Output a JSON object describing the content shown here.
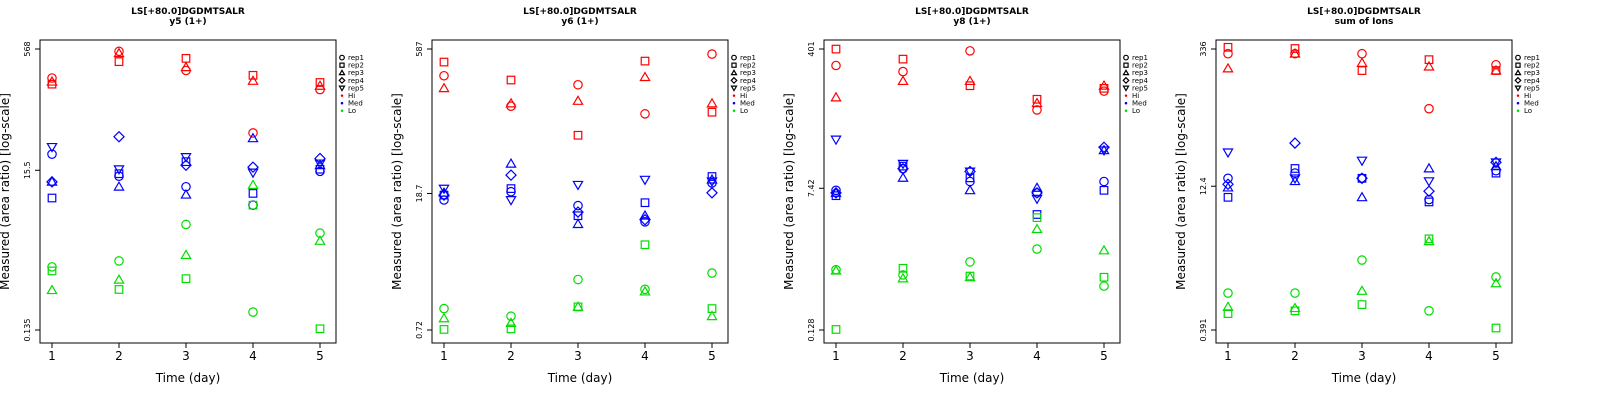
{
  "figure": {
    "colors": {
      "Hi": "#ff0000",
      "Med": "#0000ff",
      "Lo": "#00dd00"
    },
    "legend_entries": [
      {
        "label": "rep1",
        "shape": "circle"
      },
      {
        "label": "rep2",
        "shape": "square"
      },
      {
        "label": "rep3",
        "shape": "triangle-up"
      },
      {
        "label": "rep4",
        "shape": "diamond"
      },
      {
        "label": "rep5",
        "shape": "triangle-down"
      },
      {
        "label": "Hi",
        "shape": "dot",
        "group": "Hi"
      },
      {
        "label": "Med",
        "shape": "dot",
        "group": "Med"
      },
      {
        "label": "Lo",
        "shape": "dot",
        "group": "Lo"
      }
    ]
  },
  "chart_data": [
    {
      "type": "scatter",
      "title": "LS[+80.0]DGDMTSALR",
      "subtitle": "y5 (1+)",
      "xlabel": "Time (day)",
      "ylabel": "Measured (area ratio) [log-scale]",
      "log_y": true,
      "ylim": [
        0.135,
        568
      ],
      "ytick_labels": [
        "0.135",
        "15.5",
        "568"
      ],
      "yticks": [
        0.135,
        15.5,
        568
      ],
      "x_ticks": [
        1,
        2,
        3,
        4,
        5
      ],
      "legend_position": "right",
      "grid": false,
      "series": [
        {
          "group": "Hi",
          "rep": "rep1",
          "x": [
            1,
            2,
            3,
            4,
            5
          ],
          "y": [
            240,
            530,
            300,
            47,
            170
          ]
        },
        {
          "group": "Hi",
          "rep": "rep2",
          "x": [
            1,
            2,
            3,
            4,
            5
          ],
          "y": [
            200,
            390,
            430,
            260,
            210
          ]
        },
        {
          "group": "Hi",
          "rep": "rep3",
          "x": [
            1,
            2,
            3,
            4,
            5
          ],
          "y": [
            215,
            500,
            330,
            220,
            190
          ]
        },
        {
          "group": "Med",
          "rep": "rep1",
          "x": [
            1,
            2,
            3,
            4,
            5
          ],
          "y": [
            25,
            13,
            9.5,
            5.5,
            15
          ]
        },
        {
          "group": "Med",
          "rep": "rep2",
          "x": [
            1,
            2,
            3,
            4,
            5
          ],
          "y": [
            6.8,
            14,
            20,
            7.8,
            16
          ]
        },
        {
          "group": "Med",
          "rep": "rep3",
          "x": [
            1,
            2,
            3,
            4,
            5
          ],
          "y": [
            11,
            9.5,
            7.5,
            40,
            18
          ]
        },
        {
          "group": "Med",
          "rep": "rep4",
          "x": [
            1,
            2,
            3,
            4,
            5
          ],
          "y": [
            11,
            42,
            18,
            17,
            22
          ]
        },
        {
          "group": "Med",
          "rep": "rep5",
          "x": [
            1,
            2,
            3,
            4,
            5
          ],
          "y": [
            31,
            16,
            23,
            14.5,
            19
          ]
        },
        {
          "group": "Lo",
          "rep": "rep1",
          "x": [
            1,
            2,
            3,
            4,
            5
          ],
          "y": [
            0.88,
            1.05,
            3.1,
            0.23,
            2.4
          ]
        },
        {
          "group": "Lo",
          "rep": "rep2",
          "x": [
            1,
            2,
            3,
            4,
            5
          ],
          "y": [
            0.78,
            0.45,
            0.62,
            5.5,
            0.14
          ]
        },
        {
          "group": "Lo",
          "rep": "rep3",
          "x": [
            1,
            2,
            3,
            4,
            5
          ],
          "y": [
            0.44,
            0.6,
            1.25,
            10,
            1.9
          ]
        }
      ]
    },
    {
      "type": "scatter",
      "title": "LS[+80.0]DGDMTSALR",
      "subtitle": "y6 (1+)",
      "xlabel": "Time (day)",
      "ylabel": "Measured (area ratio) [log-scale]",
      "log_y": true,
      "ylim": [
        0.72,
        587
      ],
      "ytick_labels": [
        "0.72",
        "18.7",
        "587"
      ],
      "yticks": [
        0.72,
        18.7,
        587
      ],
      "x_ticks": [
        1,
        2,
        3,
        4,
        5
      ],
      "legend_position": "right",
      "grid": false,
      "series": [
        {
          "group": "Hi",
          "rep": "rep1",
          "x": [
            1,
            2,
            3,
            4,
            5
          ],
          "y": [
            310,
            150,
            250,
            125,
            520
          ]
        },
        {
          "group": "Hi",
          "rep": "rep2",
          "x": [
            1,
            2,
            3,
            4,
            5
          ],
          "y": [
            430,
            280,
            75,
            440,
            130
          ]
        },
        {
          "group": "Hi",
          "rep": "rep3",
          "x": [
            1,
            2,
            3,
            4,
            5
          ],
          "y": [
            230,
            160,
            170,
            300,
            160
          ]
        },
        {
          "group": "Med",
          "rep": "rep1",
          "x": [
            1,
            2,
            3,
            4,
            5
          ],
          "y": [
            16,
            19.5,
            14,
            9.5,
            24
          ]
        },
        {
          "group": "Med",
          "rep": "rep2",
          "x": [
            1,
            2,
            3,
            4,
            5
          ],
          "y": [
            18,
            21,
            11,
            15,
            28
          ]
        },
        {
          "group": "Med",
          "rep": "rep3",
          "x": [
            1,
            2,
            3,
            4,
            5
          ],
          "y": [
            19,
            38,
            9,
            11,
            26
          ]
        },
        {
          "group": "Med",
          "rep": "rep4",
          "x": [
            1,
            2,
            3,
            4,
            5
          ],
          "y": [
            18,
            29,
            12,
            10,
            19
          ]
        },
        {
          "group": "Med",
          "rep": "rep5",
          "x": [
            1,
            2,
            3,
            4,
            5
          ],
          "y": [
            21,
            16,
            23,
            26,
            25
          ]
        },
        {
          "group": "Lo",
          "rep": "rep1",
          "x": [
            1,
            2,
            3,
            4,
            5
          ],
          "y": [
            1.2,
            1,
            2.4,
            1.9,
            2.8
          ]
        },
        {
          "group": "Lo",
          "rep": "rep2",
          "x": [
            1,
            2,
            3,
            4,
            5
          ],
          "y": [
            0.73,
            0.74,
            1.25,
            5.5,
            1.2
          ]
        },
        {
          "group": "Lo",
          "rep": "rep3",
          "x": [
            1,
            2,
            3,
            4,
            5
          ],
          "y": [
            0.95,
            0.85,
            1.25,
            1.8,
            1
          ]
        }
      ]
    },
    {
      "type": "scatter",
      "title": "LS[+80.0]DGDMTSALR",
      "subtitle": "y8 (1+)",
      "xlabel": "Time (day)",
      "ylabel": "Measured (area ratio) [log-scale]",
      "log_y": true,
      "ylim": [
        0.128,
        401
      ],
      "ytick_labels": [
        "0.128",
        "7.42",
        "401"
      ],
      "yticks": [
        0.128,
        7.42,
        401
      ],
      "x_ticks": [
        1,
        2,
        3,
        4,
        5
      ],
      "legend_position": "right",
      "grid": false,
      "series": [
        {
          "group": "Hi",
          "rep": "rep1",
          "x": [
            1,
            2,
            3,
            4,
            5
          ],
          "y": [
            250,
            210,
            380,
            70,
            120
          ]
        },
        {
          "group": "Hi",
          "rep": "rep2",
          "x": [
            1,
            2,
            3,
            4,
            5
          ],
          "y": [
            400,
            300,
            140,
            95,
            130
          ]
        },
        {
          "group": "Hi",
          "rep": "rep3",
          "x": [
            1,
            2,
            3,
            4,
            5
          ],
          "y": [
            100,
            160,
            160,
            85,
            140
          ]
        },
        {
          "group": "Med",
          "rep": "rep1",
          "x": [
            1,
            2,
            3,
            4,
            5
          ],
          "y": [
            7,
            13,
            9,
            6.5,
            9
          ]
        },
        {
          "group": "Med",
          "rep": "rep2",
          "x": [
            1,
            2,
            3,
            4,
            5
          ],
          "y": [
            6,
            14,
            10,
            3.5,
            7
          ]
        },
        {
          "group": "Med",
          "rep": "rep3",
          "x": [
            1,
            2,
            3,
            4,
            5
          ],
          "y": [
            6.5,
            10,
            7,
            7.5,
            22
          ]
        },
        {
          "group": "Med",
          "rep": "rep4",
          "x": [
            1,
            2,
            3,
            4,
            5
          ],
          "y": [
            6.5,
            13,
            12,
            6.5,
            24
          ]
        },
        {
          "group": "Med",
          "rep": "rep5",
          "x": [
            1,
            2,
            3,
            4,
            5
          ],
          "y": [
            30,
            15,
            12,
            5.5,
            22
          ]
        },
        {
          "group": "Lo",
          "rep": "rep1",
          "x": [
            1,
            2,
            3,
            4,
            5
          ],
          "y": [
            0.72,
            0.62,
            0.9,
            1.3,
            0.45
          ]
        },
        {
          "group": "Lo",
          "rep": "rep2",
          "x": [
            1,
            2,
            3,
            4,
            5
          ],
          "y": [
            0.13,
            0.75,
            0.6,
            3.2,
            0.58
          ]
        },
        {
          "group": "Lo",
          "rep": "rep3",
          "x": [
            1,
            2,
            3,
            4,
            5
          ],
          "y": [
            0.7,
            0.56,
            0.58,
            2.3,
            1.25
          ]
        }
      ]
    },
    {
      "type": "scatter",
      "title": "LS[+80.0]DGDMTSALR",
      "subtitle": "sum of Ions",
      "xlabel": "Time (day)",
      "ylabel": "Measured (area ratio) [log-scale]",
      "log_y": true,
      "ylim": [
        0.391,
        336
      ],
      "ytick_labels": [
        "0.391",
        "12.4",
        "336"
      ],
      "yticks": [
        0.391,
        12.4,
        336
      ],
      "x_ticks": [
        1,
        2,
        3,
        4,
        5
      ],
      "legend_position": "right",
      "grid": false,
      "series": [
        {
          "group": "Hi",
          "rep": "rep1",
          "x": [
            1,
            2,
            3,
            4,
            5
          ],
          "y": [
            300,
            300,
            300,
            80,
            230
          ]
        },
        {
          "group": "Hi",
          "rep": "rep2",
          "x": [
            1,
            2,
            3,
            4,
            5
          ],
          "y": [
            350,
            340,
            200,
            260,
            200
          ]
        },
        {
          "group": "Hi",
          "rep": "rep3",
          "x": [
            1,
            2,
            3,
            4,
            5
          ],
          "y": [
            210,
            300,
            240,
            220,
            200
          ]
        },
        {
          "group": "Med",
          "rep": "rep1",
          "x": [
            1,
            2,
            3,
            4,
            5
          ],
          "y": [
            15,
            17,
            15,
            9,
            18
          ]
        },
        {
          "group": "Med",
          "rep": "rep2",
          "x": [
            1,
            2,
            3,
            4,
            5
          ],
          "y": [
            9.5,
            19,
            15,
            8.5,
            17
          ]
        },
        {
          "group": "Med",
          "rep": "rep3",
          "x": [
            1,
            2,
            3,
            4,
            5
          ],
          "y": [
            12,
            14,
            9.5,
            19,
            20
          ]
        },
        {
          "group": "Med",
          "rep": "rep4",
          "x": [
            1,
            2,
            3,
            4,
            5
          ],
          "y": [
            13,
            35,
            15,
            11,
            22
          ]
        },
        {
          "group": "Med",
          "rep": "rep5",
          "x": [
            1,
            2,
            3,
            4,
            5
          ],
          "y": [
            28,
            15,
            23,
            14,
            22
          ]
        },
        {
          "group": "Lo",
          "rep": "rep1",
          "x": [
            1,
            2,
            3,
            4,
            5
          ],
          "y": [
            0.95,
            0.95,
            2.1,
            0.62,
            1.4
          ]
        },
        {
          "group": "Lo",
          "rep": "rep2",
          "x": [
            1,
            2,
            3,
            4,
            5
          ],
          "y": [
            0.58,
            0.62,
            0.72,
            3.5,
            0.41
          ]
        },
        {
          "group": "Lo",
          "rep": "rep3",
          "x": [
            1,
            2,
            3,
            4,
            5
          ],
          "y": [
            0.68,
            0.66,
            1,
            3.3,
            1.2
          ]
        }
      ]
    }
  ]
}
